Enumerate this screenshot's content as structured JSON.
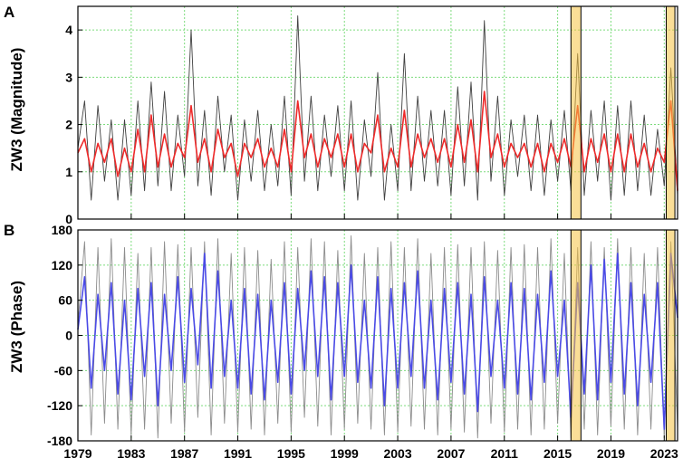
{
  "chart_data": [
    {
      "panel": "A",
      "type": "line",
      "xlabel": "",
      "ylabel": "ZW3 (Magnitude)",
      "xlim": [
        1979,
        2024
      ],
      "ylim": [
        0,
        4.5
      ],
      "yticks": [
        0,
        1,
        2,
        3,
        4
      ],
      "grid": true,
      "series": [
        {
          "color": "#404040",
          "x": [
            1979.0,
            1979.5,
            1980.0,
            1980.5,
            1981.0,
            1981.5,
            1982.0,
            1982.5,
            1983.0,
            1983.5,
            1984.0,
            1984.5,
            1985.0,
            1985.5,
            1986.0,
            1986.5,
            1987.0,
            1987.5,
            1988.0,
            1988.5,
            1989.0,
            1989.5,
            1990.0,
            1990.5,
            1991.0,
            1991.5,
            1992.0,
            1992.5,
            1993.0,
            1993.5,
            1994.0,
            1994.5,
            1995.0,
            1995.5,
            1996.0,
            1996.5,
            1997.0,
            1997.5,
            1998.0,
            1998.5,
            1999.0,
            1999.5,
            2000.0,
            2000.5,
            2001.0,
            2001.5,
            2002.0,
            2002.5,
            2003.0,
            2003.5,
            2004.0,
            2004.5,
            2005.0,
            2005.5,
            2006.0,
            2006.5,
            2007.0,
            2007.5,
            2008.0,
            2008.5,
            2009.0,
            2009.5,
            2010.0,
            2010.5,
            2011.0,
            2011.5,
            2012.0,
            2012.5,
            2013.0,
            2013.5,
            2014.0,
            2014.5,
            2015.0,
            2015.5,
            2016.0,
            2016.5,
            2017.0,
            2017.5,
            2018.0,
            2018.5,
            2019.0,
            2019.5,
            2020.0,
            2020.5,
            2021.0,
            2021.5,
            2022.0,
            2022.5,
            2023.0,
            2023.5,
            2024.0
          ],
          "y": [
            1.5,
            2.5,
            0.4,
            2.4,
            0.8,
            2.1,
            0.4,
            2.1,
            0.5,
            2.5,
            0.6,
            2.9,
            0.7,
            2.7,
            0.6,
            2.2,
            0.9,
            4.0,
            0.7,
            2.3,
            0.5,
            2.6,
            1.0,
            2.2,
            0.4,
            2.1,
            0.8,
            2.3,
            0.6,
            2.0,
            0.7,
            2.6,
            0.5,
            4.3,
            0.8,
            2.6,
            0.6,
            2.2,
            0.9,
            2.4,
            0.6,
            2.5,
            0.4,
            2.1,
            0.9,
            3.1,
            0.4,
            2.0,
            0.6,
            3.5,
            0.6,
            2.6,
            0.8,
            2.3,
            0.7,
            2.3,
            0.5,
            2.8,
            0.7,
            2.9,
            0.4,
            4.2,
            0.8,
            2.6,
            0.5,
            2.1,
            0.9,
            2.2,
            0.6,
            2.2,
            0.5,
            2.1,
            0.8,
            2.3,
            0.6,
            3.5,
            0.5,
            2.3,
            0.8,
            2.5,
            0.4,
            2.4,
            0.5,
            2.5,
            0.6,
            2.2,
            0.5,
            1.9,
            0.7,
            3.2,
            0.5
          ]
        },
        {
          "color": "#ee2a2a",
          "x": [
            1979.0,
            1979.5,
            1980.0,
            1980.5,
            1981.0,
            1981.5,
            1982.0,
            1982.5,
            1983.0,
            1983.5,
            1984.0,
            1984.5,
            1985.0,
            1985.5,
            1986.0,
            1986.5,
            1987.0,
            1987.5,
            1988.0,
            1988.5,
            1989.0,
            1989.5,
            1990.0,
            1990.5,
            1991.0,
            1991.5,
            1992.0,
            1992.5,
            1993.0,
            1993.5,
            1994.0,
            1994.5,
            1995.0,
            1995.5,
            1996.0,
            1996.5,
            1997.0,
            1997.5,
            1998.0,
            1998.5,
            1999.0,
            1999.5,
            2000.0,
            2000.5,
            2001.0,
            2001.5,
            2002.0,
            2002.5,
            2003.0,
            2003.5,
            2004.0,
            2004.5,
            2005.0,
            2005.5,
            2006.0,
            2006.5,
            2007.0,
            2007.5,
            2008.0,
            2008.5,
            2009.0,
            2009.5,
            2010.0,
            2010.5,
            2011.0,
            2011.5,
            2012.0,
            2012.5,
            2013.0,
            2013.5,
            2014.0,
            2014.5,
            2015.0,
            2015.5,
            2016.0,
            2016.5,
            2017.0,
            2017.5,
            2018.0,
            2018.5,
            2019.0,
            2019.5,
            2020.0,
            2020.5,
            2021.0,
            2021.5,
            2022.0,
            2022.5,
            2023.0,
            2023.5,
            2024.0
          ],
          "y": [
            1.4,
            1.7,
            1.0,
            1.6,
            1.2,
            1.7,
            0.9,
            1.5,
            1.0,
            1.9,
            1.0,
            2.2,
            1.1,
            1.8,
            1.1,
            1.6,
            1.3,
            2.4,
            1.2,
            1.7,
            1.0,
            1.9,
            1.3,
            1.6,
            0.9,
            1.6,
            1.3,
            1.7,
            1.1,
            1.5,
            1.1,
            1.9,
            1.0,
            2.5,
            1.3,
            1.8,
            1.1,
            1.7,
            1.3,
            1.8,
            1.1,
            1.8,
            1.0,
            1.6,
            1.4,
            2.2,
            1.0,
            1.5,
            1.1,
            2.3,
            1.1,
            1.8,
            1.3,
            1.7,
            1.2,
            1.7,
            1.1,
            2.0,
            1.2,
            2.1,
            1.0,
            2.7,
            1.3,
            1.8,
            1.1,
            1.6,
            1.3,
            1.6,
            1.1,
            1.6,
            1.0,
            1.6,
            1.2,
            1.7,
            1.1,
            2.4,
            1.0,
            1.7,
            1.2,
            1.8,
            1.0,
            1.8,
            1.0,
            1.8,
            1.1,
            1.6,
            1.0,
            1.5,
            1.2,
            2.5,
            0.6
          ]
        }
      ],
      "highlight_bands": [
        [
          2016.0,
          2016.75
        ],
        [
          2023.15,
          2023.8
        ]
      ],
      "highlight_color": "#f5c242"
    },
    {
      "panel": "B",
      "type": "line",
      "xlabel": "",
      "ylabel": "ZW3 (Phase)",
      "xlim": [
        1979,
        2024
      ],
      "ylim": [
        -180,
        180
      ],
      "yticks": [
        -180,
        -120,
        -60,
        0,
        60,
        120,
        180
      ],
      "xticks": [
        1979,
        1983,
        1987,
        1991,
        1995,
        1999,
        2003,
        2007,
        2011,
        2015,
        2019,
        2023
      ],
      "grid": true,
      "series": [
        {
          "color": "#8c8c8c",
          "x": [
            1979.0,
            1979.5,
            1980.0,
            1980.5,
            1981.0,
            1981.5,
            1982.0,
            1982.5,
            1983.0,
            1983.5,
            1984.0,
            1984.5,
            1985.0,
            1985.5,
            1986.0,
            1986.5,
            1987.0,
            1987.5,
            1988.0,
            1988.5,
            1989.0,
            1989.5,
            1990.0,
            1990.5,
            1991.0,
            1991.5,
            1992.0,
            1992.5,
            1993.0,
            1993.5,
            1994.0,
            1994.5,
            1995.0,
            1995.5,
            1996.0,
            1996.5,
            1997.0,
            1997.5,
            1998.0,
            1998.5,
            1999.0,
            1999.5,
            2000.0,
            2000.5,
            2001.0,
            2001.5,
            2002.0,
            2002.5,
            2003.0,
            2003.5,
            2004.0,
            2004.5,
            2005.0,
            2005.5,
            2006.0,
            2006.5,
            2007.0,
            2007.5,
            2008.0,
            2008.5,
            2009.0,
            2009.5,
            2010.0,
            2010.5,
            2011.0,
            2011.5,
            2012.0,
            2012.5,
            2013.0,
            2013.5,
            2014.0,
            2014.5,
            2015.0,
            2015.5,
            2016.0,
            2016.5,
            2017.0,
            2017.5,
            2018.0,
            2018.5,
            2019.0,
            2019.5,
            2020.0,
            2020.5,
            2021.0,
            2021.5,
            2022.0,
            2022.5,
            2023.0,
            2023.5,
            2024.0
          ],
          "y": [
            20,
            160,
            -170,
            150,
            -150,
            165,
            -160,
            150,
            -170,
            140,
            -160,
            150,
            -175,
            160,
            -150,
            155,
            -165,
            150,
            -140,
            160,
            -170,
            165,
            -150,
            140,
            -165,
            150,
            -160,
            145,
            -170,
            130,
            -150,
            160,
            -165,
            150,
            -140,
            165,
            -155,
            160,
            -170,
            145,
            -160,
            170,
            -150,
            140,
            -160,
            150,
            -170,
            160,
            -165,
            150,
            -155,
            165,
            -160,
            140,
            -170,
            150,
            -160,
            155,
            -165,
            150,
            -175,
            160,
            -150,
            145,
            -165,
            150,
            -160,
            155,
            -170,
            150,
            -160,
            165,
            -150,
            140,
            -175,
            150,
            -160,
            160,
            -170,
            150,
            -155,
            165,
            -160,
            150,
            -170,
            140,
            -160,
            150,
            -175,
            160,
            -160
          ]
        },
        {
          "color": "#4a4ae6",
          "x": [
            1979.0,
            1979.5,
            1980.0,
            1980.5,
            1981.0,
            1981.5,
            1982.0,
            1982.5,
            1983.0,
            1983.5,
            1984.0,
            1984.5,
            1985.0,
            1985.5,
            1986.0,
            1986.5,
            1987.0,
            1987.5,
            1988.0,
            1988.5,
            1989.0,
            1989.5,
            1990.0,
            1990.5,
            1991.0,
            1991.5,
            1992.0,
            1992.5,
            1993.0,
            1993.5,
            1994.0,
            1994.5,
            1995.0,
            1995.5,
            1996.0,
            1996.5,
            1997.0,
            1997.5,
            1998.0,
            1998.5,
            1999.0,
            1999.5,
            2000.0,
            2000.5,
            2001.0,
            2001.5,
            2002.0,
            2002.5,
            2003.0,
            2003.5,
            2004.0,
            2004.5,
            2005.0,
            2005.5,
            2006.0,
            2006.5,
            2007.0,
            2007.5,
            2008.0,
            2008.5,
            2009.0,
            2009.5,
            2010.0,
            2010.5,
            2011.0,
            2011.5,
            2012.0,
            2012.5,
            2013.0,
            2013.5,
            2014.0,
            2014.5,
            2015.0,
            2015.5,
            2016.0,
            2016.5,
            2017.0,
            2017.5,
            2018.0,
            2018.5,
            2019.0,
            2019.5,
            2020.0,
            2020.5,
            2021.0,
            2021.5,
            2022.0,
            2022.5,
            2023.0,
            2023.5,
            2024.0
          ],
          "y": [
            10,
            100,
            -90,
            70,
            -60,
            90,
            -100,
            60,
            -110,
            80,
            -70,
            90,
            -120,
            70,
            -60,
            100,
            -80,
            80,
            -50,
            140,
            -90,
            110,
            -70,
            60,
            -90,
            80,
            -100,
            70,
            -110,
            60,
            -80,
            90,
            -100,
            80,
            -60,
            110,
            -70,
            100,
            -110,
            90,
            -70,
            120,
            -80,
            60,
            -90,
            100,
            -120,
            80,
            -90,
            90,
            -70,
            110,
            -90,
            60,
            -110,
            80,
            -80,
            90,
            -100,
            70,
            -130,
            100,
            -70,
            60,
            -90,
            90,
            -100,
            80,
            -110,
            70,
            -80,
            110,
            -70,
            60,
            -140,
            90,
            -100,
            120,
            -110,
            130,
            -80,
            140,
            -100,
            90,
            -120,
            70,
            -80,
            90,
            -160,
            140,
            30
          ]
        }
      ],
      "highlight_bands": [
        [
          2016.0,
          2016.75
        ],
        [
          2023.15,
          2023.8
        ]
      ],
      "highlight_color": "#f5c242"
    }
  ],
  "panels": [
    {
      "letter": "A",
      "ylabel": "ZW3 (Magnitude)",
      "ytick_labels": [
        "0",
        "1",
        "2",
        "3",
        "4"
      ]
    },
    {
      "letter": "B",
      "ylabel": "ZW3 (Phase)",
      "ytick_labels": [
        "-180",
        "-120",
        "-60",
        "0",
        "60",
        "120",
        "180"
      ]
    }
  ],
  "xtick_labels": [
    "1979",
    "1983",
    "1987",
    "1991",
    "1995",
    "1999",
    "2003",
    "2007",
    "2011",
    "2015",
    "2019",
    "2023"
  ],
  "colors": {
    "grid": "#7ddc7d",
    "frame": "#000000",
    "highlight": "#f5c242"
  }
}
